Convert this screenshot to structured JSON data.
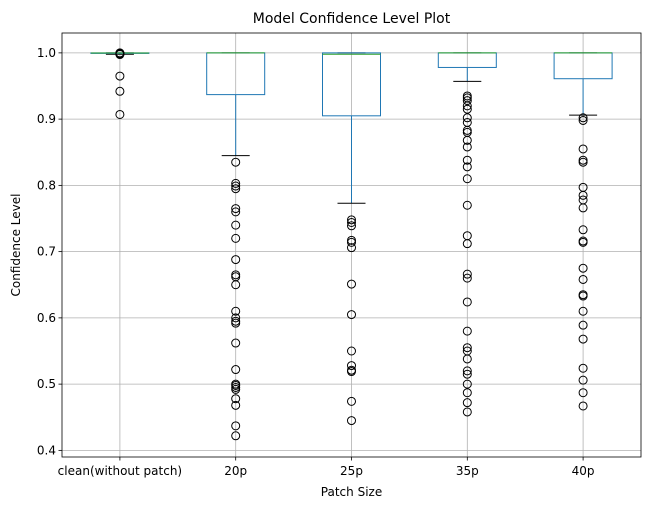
{
  "chart_data": {
    "type": "box",
    "title": "Model Confidence Level Plot",
    "xlabel": "Patch Size",
    "ylabel": "Confidence Level",
    "ylim": [
      0.39,
      1.03
    ],
    "yticks": [
      0.4,
      0.5,
      0.6,
      0.7,
      0.8,
      0.9,
      1.0
    ],
    "ytick_labels": [
      "0.4",
      "0.5",
      "0.6",
      "0.7",
      "0.8",
      "0.9",
      "1.0"
    ],
    "grid": true,
    "colors": {
      "box": "#1f77b4",
      "median": "#2ca02c",
      "whisker": "#1f77b4",
      "cap": "#000000",
      "flier": "#000000",
      "grid": "#b0b0b0"
    },
    "categories": [
      "clean(without patch)",
      "20p",
      "25p",
      "35p",
      "40p"
    ],
    "boxes": [
      {
        "q1": 0.9995,
        "median": 0.9999,
        "q3": 1.0,
        "whisker_low": 0.998,
        "whisker_high": 1.0,
        "fliers": [
          0.9985,
          0.999,
          0.9995,
          1.0,
          0.9975,
          0.965,
          0.942,
          0.907
        ]
      },
      {
        "q1": 0.937,
        "median": 1.0,
        "q3": 1.0,
        "whisker_low": 0.845,
        "whisker_high": 1.0,
        "fliers": [
          0.835,
          0.803,
          0.799,
          0.795,
          0.765,
          0.76,
          0.74,
          0.72,
          0.688,
          0.665,
          0.662,
          0.65,
          0.61,
          0.6,
          0.595,
          0.592,
          0.562,
          0.522,
          0.5,
          0.498,
          0.495,
          0.492,
          0.478,
          0.468,
          0.437,
          0.422
        ]
      },
      {
        "q1": 0.905,
        "median": 0.998,
        "q3": 1.0,
        "whisker_low": 0.773,
        "whisker_high": 1.0,
        "fliers": [
          0.748,
          0.744,
          0.739,
          0.717,
          0.714,
          0.706,
          0.651,
          0.605,
          0.55,
          0.528,
          0.521,
          0.519,
          0.474,
          0.445
        ]
      },
      {
        "q1": 0.978,
        "median": 1.0,
        "q3": 1.0,
        "whisker_low": 0.957,
        "whisker_high": 1.0,
        "fliers": [
          0.935,
          0.932,
          0.928,
          0.92,
          0.915,
          0.902,
          0.895,
          0.883,
          0.88,
          0.868,
          0.858,
          0.838,
          0.828,
          0.81,
          0.77,
          0.724,
          0.712,
          0.666,
          0.66,
          0.624,
          0.58,
          0.555,
          0.55,
          0.538,
          0.52,
          0.515,
          0.5,
          0.487,
          0.472,
          0.458
        ]
      },
      {
        "q1": 0.961,
        "median": 1.0,
        "q3": 1.0,
        "whisker_low": 0.906,
        "whisker_high": 1.0,
        "fliers": [
          0.902,
          0.898,
          0.855,
          0.838,
          0.835,
          0.797,
          0.785,
          0.778,
          0.766,
          0.733,
          0.716,
          0.714,
          0.675,
          0.658,
          0.635,
          0.633,
          0.61,
          0.589,
          0.568,
          0.524,
          0.506,
          0.487,
          0.467
        ]
      }
    ]
  }
}
